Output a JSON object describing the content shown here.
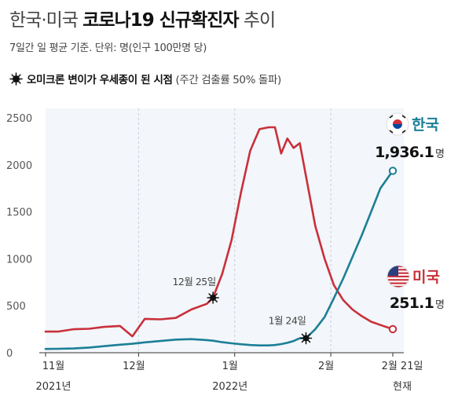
{
  "header": {
    "title_light": "한국·미국",
    "title_bold": "코로나19 신규확진자",
    "title_tail": "추이",
    "subtitle": "7일간 일 평균 기준. 단위: 명(인구 100만명 당)",
    "note_bold": "오미크론 변이가 우세종이 된 시점",
    "note_normal": "(주간 검출률 50% 돌파)"
  },
  "chart_data": {
    "type": "line",
    "yticks": [
      "0",
      "500",
      "1000",
      "1500",
      "2000",
      "2500"
    ],
    "ylim": [
      0,
      2500
    ],
    "xticks": [
      {
        "line1": "11월",
        "line2": "2021년"
      },
      {
        "line1": "12월",
        "line2": ""
      },
      {
        "line1": "1월",
        "line2": "2022년"
      },
      {
        "line1": "2월",
        "line2": ""
      },
      {
        "line1": "2월 21일",
        "line2": "현재"
      }
    ],
    "x": [
      "2021-11-01",
      "2021-11-05",
      "2021-11-10",
      "2021-11-15",
      "2021-11-20",
      "2021-11-25",
      "2021-11-29",
      "2021-12-03",
      "2021-12-08",
      "2021-12-13",
      "2021-12-18",
      "2021-12-23",
      "2021-12-25",
      "2021-12-28",
      "2021-12-31",
      "2022-01-03",
      "2022-01-06",
      "2022-01-09",
      "2022-01-12",
      "2022-01-14",
      "2022-01-16",
      "2022-01-18",
      "2022-01-20",
      "2022-01-22",
      "2022-01-24",
      "2022-01-27",
      "2022-01-30",
      "2022-02-02",
      "2022-02-05",
      "2022-02-08",
      "2022-02-11",
      "2022-02-14",
      "2022-02-17",
      "2022-02-21"
    ],
    "series": [
      {
        "name": "미국",
        "color": "#c8303a",
        "values": [
          225,
          225,
          250,
          255,
          275,
          285,
          175,
          360,
          355,
          370,
          460,
          520,
          585,
          840,
          1200,
          1700,
          2150,
          2380,
          2400,
          2400,
          2120,
          2280,
          2180,
          2230,
          1880,
          1350,
          1000,
          720,
          560,
          460,
          390,
          330,
          295,
          251.1
        ]
      },
      {
        "name": "한국",
        "color": "#1b7f96",
        "values": [
          40,
          42,
          45,
          55,
          70,
          85,
          95,
          110,
          125,
          140,
          145,
          135,
          128,
          112,
          100,
          90,
          82,
          78,
          78,
          82,
          92,
          105,
          125,
          155,
          155,
          250,
          380,
          580,
          790,
          1020,
          1250,
          1500,
          1750,
          1936.1
        ]
      }
    ],
    "omicron_markers": [
      {
        "label": "12월 25일",
        "date": "2021-12-25",
        "series": "미국",
        "y": 585
      },
      {
        "label": "1월 24일",
        "date": "2022-01-24",
        "series": "한국",
        "y": 155
      }
    ],
    "end_labels": [
      {
        "name": "한국",
        "value": "1,936.1",
        "unit": "명",
        "flag": "korea-flag"
      },
      {
        "name": "미국",
        "value": "251.1",
        "unit": "명",
        "flag": "usa-flag"
      }
    ],
    "grid": false,
    "month_guides": [
      "12월",
      "1월",
      "2월"
    ]
  }
}
